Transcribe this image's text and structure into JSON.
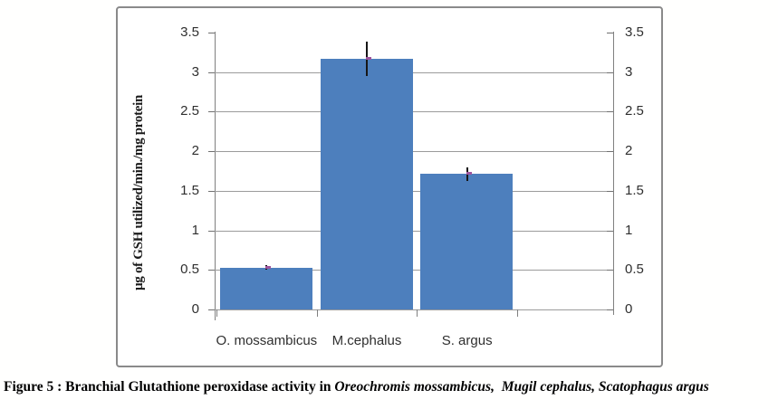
{
  "figure": {
    "caption_prefix": "Figure 5 : Branchial Glutathione peroxidase activity in ",
    "caption_species": "Oreochromis mossambicus,  Mugil cephalus, Scatophagus argus"
  },
  "chart_data": {
    "type": "bar",
    "title": "",
    "categories": [
      "O. mossambicus",
      "M.cephalus",
      "S. argus"
    ],
    "values": [
      0.53,
      3.17,
      1.71
    ],
    "error_bars": [
      0.03,
      0.22,
      0.09
    ],
    "xlabel": "",
    "ylabel": "µg of GSH utilized/min./mg protein",
    "ylim": [
      0,
      3.5
    ],
    "ytick_step": 0.5,
    "yticks": [
      "0",
      "0.5",
      "1",
      "1.5",
      "2",
      "2.5",
      "3",
      "3.5"
    ],
    "secondary_y_axis": true,
    "grid": true,
    "legend_position": "none",
    "colors": {
      "bar": "#4d7fbd",
      "gridline": "#9b9b9b",
      "axis": "#808080",
      "error_bar": "#161616",
      "mean_marker": "#9c549c",
      "chart_border": "#8a8a8a",
      "tick_text": "#2f2f2f",
      "caption_text": "#000000"
    }
  }
}
